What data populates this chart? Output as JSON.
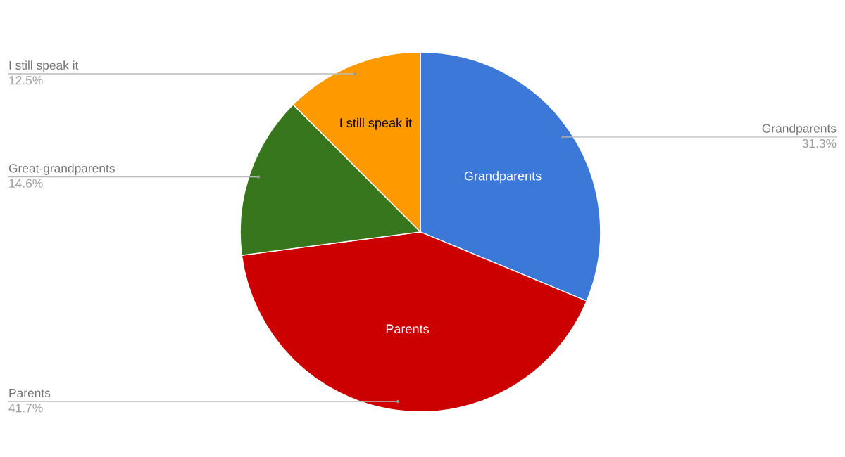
{
  "chart_data": {
    "type": "pie",
    "categories": [
      "Grandparents",
      "Parents",
      "Great-grandparents",
      "I still speak it"
    ],
    "values": [
      31.3,
      41.7,
      14.6,
      12.5
    ],
    "value_labels": [
      "31.3%",
      "41.7%",
      "14.6%",
      "12.5%"
    ],
    "colors": [
      "#3c78d8",
      "#cc0000",
      "#38761d",
      "#ff9900"
    ],
    "annotations": [
      {
        "text": "Grandparents",
        "x": "Grandparents"
      },
      {
        "text": "Parents",
        "x": "Parents"
      },
      {
        "text": "I still speak it",
        "x": "I still speak it"
      }
    ]
  }
}
